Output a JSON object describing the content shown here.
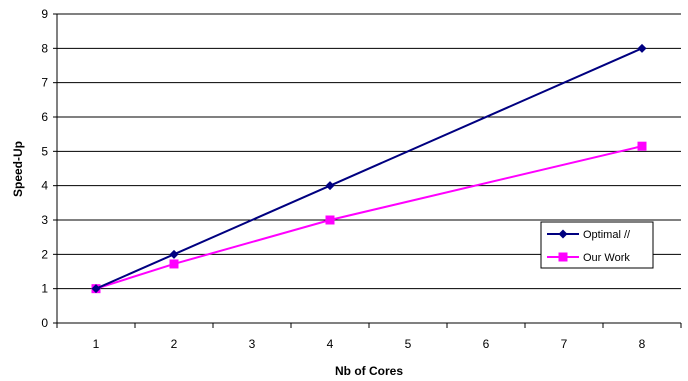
{
  "chart_data": {
    "type": "line",
    "title": "",
    "xlabel": "Nb of Cores",
    "ylabel": "Speed-Up",
    "x_categories": [
      "1",
      "2",
      "3",
      "4",
      "5",
      "6",
      "7",
      "8"
    ],
    "ylim": [
      0,
      9
    ],
    "y_ticks": [
      "0",
      "1",
      "2",
      "3",
      "4",
      "5",
      "6",
      "7",
      "8",
      "9"
    ],
    "grid": "horizontal",
    "legend_position": "right",
    "series": [
      {
        "name": "Optimal //",
        "color": "#000080",
        "marker": "diamond",
        "points": [
          {
            "x": 1,
            "y": 1
          },
          {
            "x": 2,
            "y": 2
          },
          {
            "x": 4,
            "y": 4
          },
          {
            "x": 8,
            "y": 8
          }
        ]
      },
      {
        "name": "Our Work",
        "color": "#ff00ff",
        "marker": "square",
        "points": [
          {
            "x": 1,
            "y": 1
          },
          {
            "x": 2,
            "y": 1.72
          },
          {
            "x": 4,
            "y": 3
          },
          {
            "x": 8,
            "y": 5.15
          }
        ]
      }
    ]
  }
}
